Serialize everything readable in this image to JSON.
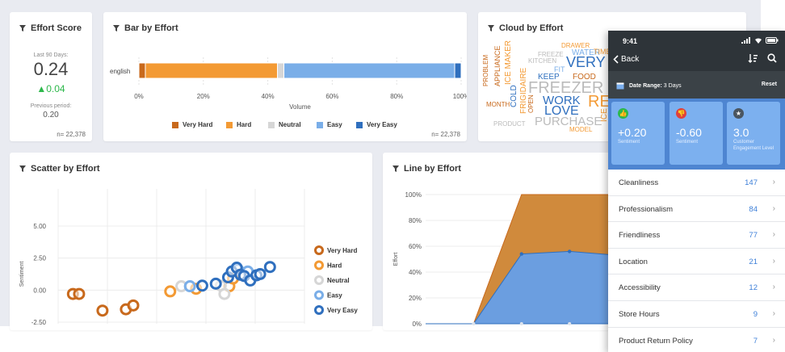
{
  "colors": {
    "very_hard": "#c8691c",
    "hard": "#f39a34",
    "neutral": "#d6d6d6",
    "easy": "#7aaee8",
    "very_easy": "#2f6fbe",
    "delta_green": "#2db84b",
    "tile_blue": "#7cb0ef",
    "link_blue": "#3d7fd8"
  },
  "effort_score": {
    "title": "Effort Score",
    "period_label": "Last 90 Days:",
    "value": "0.24",
    "delta": "▲0.04",
    "previous_label": "Previous period:",
    "previous_value": "0.20",
    "n": "n= 22,378"
  },
  "bar_by_effort": {
    "title": "Bar by Effort",
    "n": "n= 22,378"
  },
  "cloud_by_effort": {
    "title": "Cloud by Effort",
    "words": [
      {
        "text": "DRAWER",
        "color": "#f39a34"
      },
      {
        "text": "FREEZE",
        "color": "#bbbbbb"
      },
      {
        "text": "WATER",
        "color": "#7aaee8"
      },
      {
        "text": "TIME",
        "color": "#f39a34"
      },
      {
        "text": "KITCHEN",
        "color": "#bbbbbb"
      },
      {
        "text": "VERY",
        "color": "#2f6fbe"
      },
      {
        "text": "FIT",
        "color": "#7aaee8"
      },
      {
        "text": "KEEP",
        "color": "#2f6fbe"
      },
      {
        "text": "FOOD",
        "color": "#c8691c"
      },
      {
        "text": "FREEZER",
        "color": "#bbbbbb"
      },
      {
        "text": "WORK",
        "color": "#2f6fbe"
      },
      {
        "text": "RE",
        "color": "#f39a34"
      },
      {
        "text": "LOVE",
        "color": "#2f6fbe"
      },
      {
        "text": "PURCHASE",
        "color": "#bbbbbb"
      },
      {
        "text": "PRODUCT",
        "color": "#bbbbbb"
      },
      {
        "text": "MODEL",
        "color": "#f39a34"
      },
      {
        "text": "MONTH",
        "color": "#c8691c"
      },
      {
        "text": "PROBLEM",
        "color": "#c8691c"
      },
      {
        "text": "APPLIANCE",
        "color": "#c8691c"
      },
      {
        "text": "ICE MAKER",
        "color": "#f39a34"
      },
      {
        "text": "FRIGIDAIRE",
        "color": "#f39a34"
      },
      {
        "text": "COLD",
        "color": "#2f6fbe"
      },
      {
        "text": "OPEN",
        "color": "#c8691c"
      },
      {
        "text": "ICE",
        "color": "#f39a34"
      }
    ]
  },
  "scatter_by_effort": {
    "title": "Scatter by Effort"
  },
  "line_by_effort": {
    "title": "Line by Effort"
  },
  "chart_data": [
    {
      "type": "bar",
      "orientation": "horizontal-stacked",
      "title": "Bar by Effort",
      "categories": [
        "english"
      ],
      "series": [
        {
          "name": "Very Hard",
          "values": [
            2
          ]
        },
        {
          "name": "Hard",
          "values": [
            41
          ]
        },
        {
          "name": "Neutral",
          "values": [
            2
          ]
        },
        {
          "name": "Easy",
          "values": [
            53
          ]
        },
        {
          "name": "Very Easy",
          "values": [
            2
          ]
        }
      ],
      "xlabel": "Volume",
      "xlim": [
        0,
        100
      ],
      "xticks": [
        "0%",
        "20%",
        "40%",
        "60%",
        "80%",
        "100%"
      ],
      "legend": [
        "Very Hard",
        "Hard",
        "Neutral",
        "Easy",
        "Very Easy"
      ]
    },
    {
      "type": "scatter",
      "title": "Scatter by Effort",
      "ylabel": "Sentiment",
      "xlabel": "",
      "ylim": [
        -2.5,
        5.5
      ],
      "xlim": [
        0,
        10
      ],
      "yticks": [
        "5.00",
        "2.50",
        "0.00",
        "-2.50"
      ],
      "series": [
        {
          "name": "Very Hard",
          "points": [
            [
              0.6,
              -0.3
            ],
            [
              0.85,
              -0.3
            ],
            [
              1.8,
              -1.6
            ],
            [
              2.75,
              -1.5
            ],
            [
              3.05,
              -1.2
            ]
          ]
        },
        {
          "name": "Hard",
          "points": [
            [
              4.55,
              -0.1
            ],
            [
              5.6,
              0.1
            ],
            [
              6.95,
              0.3
            ],
            [
              7.1,
              0.9
            ]
          ]
        },
        {
          "name": "Neutral",
          "points": [
            [
              5.0,
              0.3
            ],
            [
              6.6,
              0.35
            ],
            [
              6.75,
              -0.3
            ]
          ]
        },
        {
          "name": "Easy",
          "points": [
            [
              5.35,
              0.3
            ],
            [
              7.3,
              1.6
            ],
            [
              7.7,
              1.45
            ]
          ]
        },
        {
          "name": "Very Easy",
          "points": [
            [
              5.85,
              0.35
            ],
            [
              6.4,
              0.5
            ],
            [
              6.9,
              1.0
            ],
            [
              7.05,
              1.45
            ],
            [
              7.25,
              1.75
            ],
            [
              7.4,
              1.2
            ],
            [
              7.55,
              1.1
            ],
            [
              7.8,
              0.75
            ],
            [
              8.05,
              1.15
            ],
            [
              8.2,
              1.25
            ],
            [
              8.6,
              1.8
            ]
          ]
        }
      ],
      "legend": [
        "Very Hard",
        "Hard",
        "Neutral",
        "Easy",
        "Very Easy"
      ]
    },
    {
      "type": "area",
      "title": "Line by Effort",
      "ylabel": "Effort",
      "ylim": [
        0,
        100
      ],
      "yticks": [
        "100%",
        "80%",
        "60%",
        "40%",
        "20%",
        "0%"
      ],
      "x": [
        0,
        1,
        2,
        3,
        4,
        5
      ],
      "series": [
        {
          "name": "Hard",
          "values": [
            0,
            0,
            100,
            100,
            100,
            100
          ]
        },
        {
          "name": "Easy",
          "values": [
            0,
            0,
            54,
            56,
            53,
            53
          ]
        }
      ]
    }
  ],
  "phone": {
    "time": "9:41",
    "back_label": "Back",
    "date_range_label": "Date Range:",
    "date_range_value": "3 Days",
    "reset_label": "Reset",
    "tiles": [
      {
        "icon": "thumbs-up-icon",
        "glyph": "👍",
        "value": "+0.20",
        "label": "Sentiment",
        "icon_color": "#2db84b"
      },
      {
        "icon": "thumbs-down-icon",
        "glyph": "👎",
        "value": "-0.60",
        "label": "Sentiment",
        "icon_color": "#e0413b"
      },
      {
        "icon": "star-icon",
        "glyph": "★",
        "value": "3.0",
        "label": "Customer Engagement Level",
        "icon_color": "#4a5560"
      }
    ],
    "rows": [
      {
        "label": "Cleanliness",
        "count": "147"
      },
      {
        "label": "Professionalism",
        "count": "84"
      },
      {
        "label": "Friendliness",
        "count": "77"
      },
      {
        "label": "Location",
        "count": "21"
      },
      {
        "label": "Accessibility",
        "count": "12"
      },
      {
        "label": "Store Hours",
        "count": "9"
      },
      {
        "label": "Product Return Policy",
        "count": "7"
      }
    ]
  }
}
